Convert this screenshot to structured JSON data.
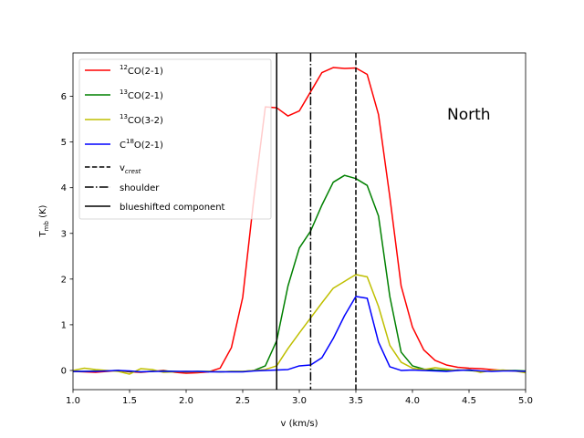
{
  "chart_data": {
    "type": "line",
    "title": "",
    "xlabel": "v (km/s)",
    "ylabel_base": "T",
    "ylabel_sub": "mb",
    "ylabel_unit": " (K)",
    "xlim": [
      1.0,
      5.0
    ],
    "ylim": [
      -0.42,
      6.95
    ],
    "xticks": [
      1.0,
      1.5,
      2.0,
      2.5,
      3.0,
      3.5,
      4.0,
      4.5,
      5.0
    ],
    "xtick_labels": [
      "1.0",
      "1.5",
      "2.0",
      "2.5",
      "3.0",
      "3.5",
      "4.0",
      "4.5",
      "5.0"
    ],
    "yticks": [
      0,
      1,
      2,
      3,
      4,
      5,
      6
    ],
    "ytick_labels": [
      "0",
      "1",
      "2",
      "3",
      "4",
      "5",
      "6"
    ],
    "annotation": "North",
    "legend_position": "upper-left",
    "x": [
      1.0,
      1.1,
      1.2,
      1.3,
      1.4,
      1.5,
      1.6,
      1.7,
      1.8,
      1.9,
      2.0,
      2.1,
      2.2,
      2.3,
      2.4,
      2.5,
      2.6,
      2.7,
      2.8,
      2.9,
      3.0,
      3.1,
      3.2,
      3.3,
      3.4,
      3.5,
      3.6,
      3.7,
      3.8,
      3.9,
      4.0,
      4.1,
      4.2,
      4.3,
      4.4,
      4.5,
      4.6,
      4.7,
      4.8,
      4.9,
      5.0
    ],
    "series": [
      {
        "name_sup": "12",
        "name_main": "CO(2-1)",
        "color": "#ff0000",
        "values": [
          -0.02,
          -0.03,
          -0.04,
          -0.02,
          0.0,
          -0.03,
          -0.04,
          -0.02,
          0.0,
          -0.04,
          -0.06,
          -0.05,
          -0.03,
          0.05,
          0.5,
          1.6,
          3.8,
          5.77,
          5.75,
          5.57,
          5.68,
          6.1,
          6.52,
          6.63,
          6.61,
          6.62,
          6.48,
          5.6,
          3.8,
          1.85,
          0.95,
          0.45,
          0.22,
          0.12,
          0.07,
          0.05,
          0.04,
          0.02,
          0.0,
          -0.01,
          -0.02
        ]
      },
      {
        "name_sup": "13",
        "name_main": "CO(2-1)",
        "color": "#008000",
        "values": [
          -0.02,
          -0.02,
          -0.01,
          -0.01,
          0.0,
          -0.02,
          -0.03,
          -0.02,
          -0.01,
          -0.02,
          -0.03,
          -0.02,
          -0.02,
          -0.03,
          -0.02,
          -0.02,
          0.0,
          0.1,
          0.65,
          1.85,
          2.68,
          3.05,
          3.62,
          4.12,
          4.27,
          4.2,
          4.05,
          3.38,
          1.62,
          0.4,
          0.1,
          0.03,
          0.01,
          0.0,
          0.01,
          0.0,
          -0.02,
          -0.01,
          0.0,
          0.0,
          -0.01
        ]
      },
      {
        "name_sup": "13",
        "name_main": "CO(3-2)",
        "color": "#bfbf00",
        "values": [
          0.0,
          0.05,
          0.02,
          0.0,
          -0.02,
          -0.08,
          0.04,
          0.02,
          -0.04,
          -0.03,
          -0.02,
          -0.03,
          -0.02,
          -0.03,
          -0.02,
          -0.02,
          0.0,
          0.02,
          0.1,
          0.48,
          0.82,
          1.15,
          1.48,
          1.8,
          1.95,
          2.1,
          2.05,
          1.4,
          0.55,
          0.18,
          0.05,
          0.02,
          0.06,
          0.03,
          0.0,
          0.02,
          -0.04,
          0.0,
          0.01,
          -0.01,
          -0.05
        ]
      },
      {
        "name_sup": "18",
        "name_pre": "C",
        "name_main": "O(2-1)",
        "color": "#0000ff",
        "values": [
          -0.02,
          -0.02,
          -0.02,
          -0.01,
          0.0,
          -0.01,
          -0.03,
          -0.02,
          -0.02,
          -0.02,
          -0.02,
          -0.02,
          -0.03,
          -0.03,
          -0.03,
          -0.03,
          -0.01,
          0.0,
          0.01,
          0.02,
          0.1,
          0.12,
          0.28,
          0.7,
          1.2,
          1.62,
          1.58,
          0.62,
          0.08,
          0.0,
          0.01,
          0.0,
          -0.01,
          -0.02,
          0.0,
          0.01,
          -0.01,
          -0.02,
          -0.01,
          -0.01,
          -0.02
        ]
      }
    ],
    "vlines": [
      {
        "label_base": "v",
        "label_sub": "crest",
        "x": 3.5,
        "style": "dashed"
      },
      {
        "label_base": "shoulder",
        "x": 3.1,
        "style": "dashdot"
      },
      {
        "label_base": "blueshifted component",
        "x": 2.8,
        "style": "solid"
      }
    ]
  }
}
